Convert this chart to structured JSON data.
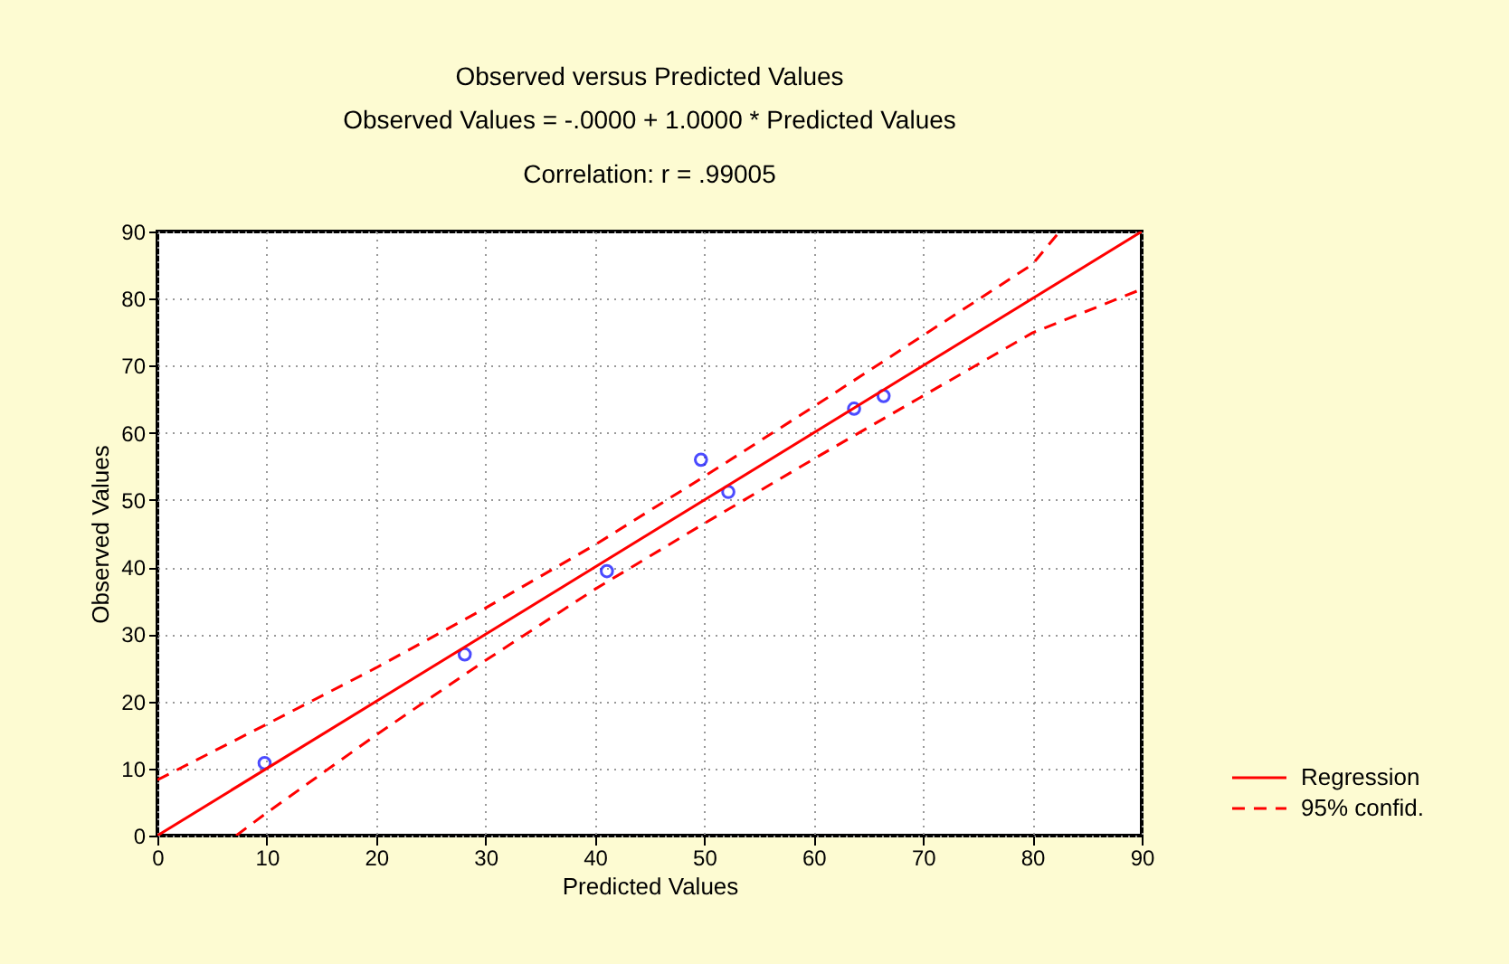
{
  "chart_data": {
    "type": "scatter",
    "title": "Observed versus Predicted Values",
    "subtitle": "Observed Values = -.0000 + 1.0000 * Predicted Values",
    "annotations": [
      "Correlation: r = .99005"
    ],
    "xlabel": "Predicted Values",
    "ylabel": "Observed Values",
    "xlim": [
      0,
      90
    ],
    "ylim": [
      0,
      90
    ],
    "xticks": [
      0,
      10,
      20,
      30,
      40,
      50,
      60,
      70,
      80,
      90
    ],
    "yticks": [
      0,
      10,
      20,
      30,
      40,
      50,
      60,
      70,
      80,
      90
    ],
    "grid": true,
    "legend": "bottom right",
    "series": [
      {
        "type": "scatter",
        "marker": "circle",
        "color": "#0000ff",
        "x": [
          9.8,
          28.1,
          41.1,
          49.7,
          52.2,
          63.7,
          66.4
        ],
        "values": [
          10.8,
          27,
          39.4,
          56,
          51.2,
          63.6,
          65.5
        ]
      },
      {
        "name": "Regression",
        "type": "line",
        "line_style": "solid",
        "color": "#ff0000",
        "x": [
          0,
          90
        ],
        "values": [
          0,
          90
        ]
      },
      {
        "name": "95% confid.",
        "type": "line",
        "line_style": "dashed",
        "color": "#ff0000",
        "x": [
          0,
          10,
          20,
          30,
          40,
          50,
          60,
          70,
          80,
          82.5
        ],
        "values": [
          8.3,
          16.6,
          25,
          33.9,
          43.3,
          53.5,
          63.9,
          74.5,
          85.1,
          90
        ]
      },
      {
        "type": "line",
        "line_style": "dashed",
        "color": "#ff0000",
        "x": [
          7.2,
          10,
          20,
          30,
          40,
          50,
          60,
          70,
          80,
          90
        ],
        "values": [
          0,
          3.4,
          15,
          26.1,
          36.7,
          46.5,
          56.1,
          65.5,
          74.9,
          81.4
        ]
      }
    ]
  }
}
